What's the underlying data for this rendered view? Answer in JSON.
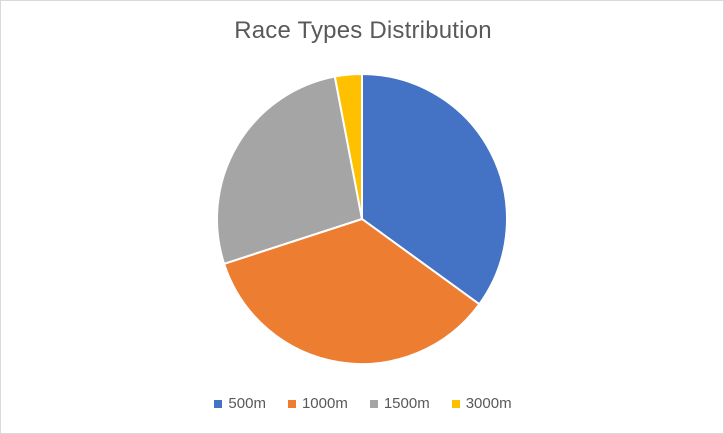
{
  "chart_data": {
    "type": "pie",
    "title": "Race Types Distribution",
    "categories": [
      "500m",
      "1000m",
      "1500m",
      "3000m"
    ],
    "values": [
      35,
      35,
      27,
      3
    ],
    "colors": [
      "#4472C4",
      "#ED7D31",
      "#A5A5A5",
      "#FFC000"
    ],
    "legend_position": "bottom"
  }
}
